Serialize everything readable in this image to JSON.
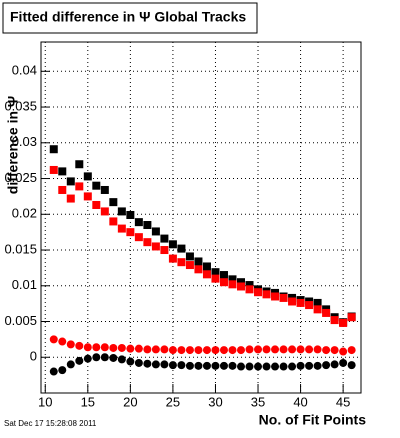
{
  "chart_data": {
    "type": "scatter",
    "title": "Fitted difference in Ψ   Global Tracks",
    "x_label": "No. of Fit Points",
    "y_label": "difference in Ψ",
    "timestamp": "Sat Dec 17 15:28:08 2011",
    "x": [
      11,
      12,
      13,
      14,
      15,
      16,
      17,
      18,
      19,
      20,
      21,
      22,
      23,
      24,
      25,
      26,
      27,
      28,
      29,
      30,
      31,
      32,
      33,
      34,
      35,
      36,
      37,
      38,
      39,
      40,
      41,
      42,
      43,
      44,
      45,
      46
    ],
    "series": [
      {
        "color": "#000000",
        "marker": "square",
        "values": [
          0.0291,
          0.026,
          0.0246,
          0.027,
          0.0253,
          0.024,
          0.0234,
          0.0217,
          0.0204,
          0.0199,
          0.0189,
          0.0185,
          0.0176,
          0.0166,
          0.0158,
          0.0152,
          0.0141,
          0.0134,
          0.0127,
          0.0119,
          0.0115,
          0.0109,
          0.0105,
          0.0101,
          0.0095,
          0.0092,
          0.009,
          0.0085,
          0.0083,
          0.008,
          0.0078,
          0.0076,
          0.0067,
          0.0056,
          0.0049,
          0.0057
        ]
      },
      {
        "color": "#ff0000",
        "marker": "square",
        "values": [
          0.0262,
          0.0234,
          0.0222,
          0.0239,
          0.0225,
          0.0213,
          0.0204,
          0.019,
          0.018,
          0.0175,
          0.0168,
          0.0161,
          0.0155,
          0.015,
          0.0138,
          0.0133,
          0.0129,
          0.0123,
          0.0116,
          0.011,
          0.0105,
          0.0102,
          0.0099,
          0.0095,
          0.0091,
          0.0088,
          0.0085,
          0.0083,
          0.0078,
          0.0076,
          0.0073,
          0.0067,
          0.0062,
          0.0052,
          0.0048,
          0.0056
        ]
      },
      {
        "color": "#ff0000",
        "marker": "circle",
        "values": [
          0.0025,
          0.0022,
          0.0018,
          0.0016,
          0.0014,
          0.0014,
          0.0014,
          0.0013,
          0.0013,
          0.0012,
          0.0012,
          0.0011,
          0.0011,
          0.0011,
          0.001,
          0.001,
          0.001,
          0.001,
          0.001,
          0.001,
          0.001,
          0.001,
          0.001,
          0.0011,
          0.0011,
          0.0011,
          0.0011,
          0.0011,
          0.0011,
          0.0011,
          0.0011,
          0.0011,
          0.001,
          0.001,
          0.0008,
          0.001
        ]
      },
      {
        "color": "#000000",
        "marker": "circle",
        "values": [
          -0.002,
          -0.0018,
          -0.001,
          -0.0005,
          -0.0002,
          0,
          0,
          -0.0001,
          -0.0003,
          -0.0006,
          -0.0008,
          -0.0009,
          -0.001,
          -0.001,
          -0.0011,
          -0.0011,
          -0.0012,
          -0.0012,
          -0.0012,
          -0.0012,
          -0.0012,
          -0.0012,
          -0.0013,
          -0.0013,
          -0.0013,
          -0.0013,
          -0.0013,
          -0.0013,
          -0.0013,
          -0.0012,
          -0.0012,
          -0.0012,
          -0.0011,
          -0.001,
          -0.0008,
          -0.0011
        ]
      }
    ],
    "xlim": [
      9.5,
      47.1
    ],
    "ylim": [
      -0.005,
      0.0441
    ],
    "xticks": [
      10,
      15,
      20,
      25,
      30,
      35,
      40,
      45
    ],
    "yticks": [
      0,
      0.005,
      0.01,
      0.015,
      0.02,
      0.025,
      0.03,
      0.035,
      0.04
    ],
    "grid": true
  }
}
